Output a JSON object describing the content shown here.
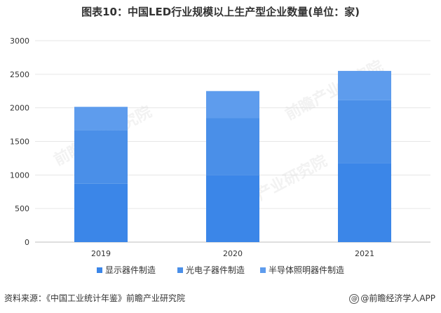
{
  "title": "图表10：中国LED行业规模以上生产型企业数量(单位：家)",
  "source": "资料来源：《中国工业统计年鉴》前瞻产业研究院",
  "brand": "@前瞻经济学人APP",
  "watermark": "前瞻产业研究院",
  "colors": {
    "s1": "#3b86e8",
    "s2": "#4a8fe8",
    "s3": "#5e9ced",
    "axis": "#bfbfbf"
  },
  "chart_data": {
    "type": "bar",
    "stacked": true,
    "categories": [
      "2019",
      "2020",
      "2021"
    ],
    "series": [
      {
        "name": "显示器件制造",
        "values": [
          870,
          1000,
          1175
        ]
      },
      {
        "name": "光电子器件制造",
        "values": [
          800,
          845,
          940
        ]
      },
      {
        "name": "半导体照明器件制造",
        "values": [
          345,
          405,
          435
        ]
      }
    ],
    "ylim": [
      0,
      3000
    ],
    "yticks": [
      0,
      500,
      1000,
      1500,
      2000,
      2500,
      3000
    ],
    "legend": "bottom",
    "grid": true
  }
}
